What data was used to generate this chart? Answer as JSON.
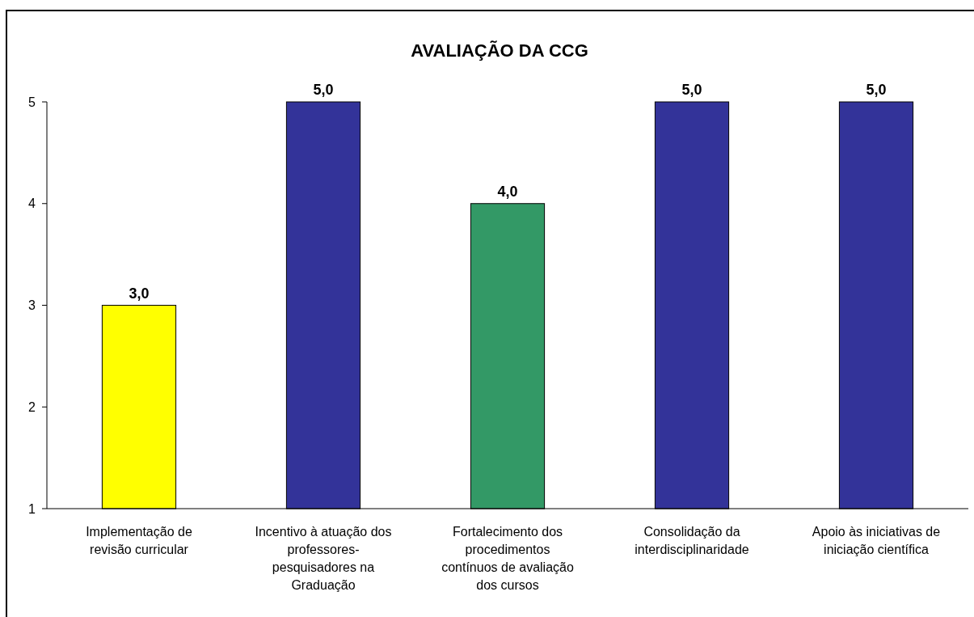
{
  "chart_data": {
    "type": "bar",
    "title": "AVALIAÇÃO DA CCG",
    "categories": [
      "Implementação de revisão curricular",
      "Incentivo à atuação dos professores-pesquisadores na Graduação",
      "Fortalecimento dos procedimentos contínuos de avaliação dos cursos",
      "Consolidação da interdisciplinaridade",
      "Apoio às iniciativas de iniciação científica"
    ],
    "values": [
      3,
      5,
      4,
      5,
      5
    ],
    "colors": [
      "#ffff00",
      "#333399",
      "#339966",
      "#333399",
      "#333399"
    ],
    "value_labels": [
      "3,0",
      "5,0",
      "4,0",
      "5,0",
      "5,0"
    ],
    "ylim": [
      1,
      5
    ],
    "yticks": [
      1,
      2,
      3,
      4,
      5
    ]
  }
}
